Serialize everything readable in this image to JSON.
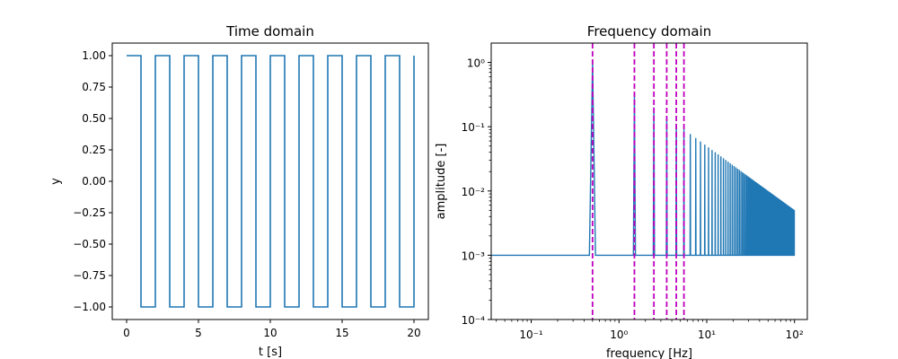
{
  "chart_data": [
    {
      "type": "line",
      "title": "Time domain",
      "xlabel": "t [s]",
      "ylabel": "y",
      "xlim": [
        -1,
        21
      ],
      "ylim": [
        -1.1,
        1.1
      ],
      "x_ticks": [
        0,
        5,
        10,
        15,
        20
      ],
      "x_tick_labels": [
        "0",
        "5",
        "10",
        "15",
        "20"
      ],
      "y_ticks": [
        1.0,
        0.75,
        0.5,
        0.25,
        0.0,
        -0.25,
        -0.5,
        -0.75,
        -1.0
      ],
      "y_tick_labels": [
        "1.00",
        "0.75",
        "0.50",
        "0.25",
        "0.00",
        "−0.25",
        "−0.50",
        "−0.75",
        "−1.00"
      ],
      "series": [
        {
          "color": "#1f77b4",
          "waveform": "square",
          "period": 2,
          "t_start": 0,
          "t_end": 20,
          "high": 1.0,
          "low": -1.0
        }
      ]
    },
    {
      "type": "line",
      "title": "Frequency domain",
      "xlabel": "frequency [Hz]",
      "ylabel": "amplitude [-]",
      "xscale": "log",
      "yscale": "log",
      "xlim": [
        0.035,
        140
      ],
      "ylim": [
        0.0001,
        2
      ],
      "x_ticks": [
        0.1,
        1,
        10,
        100
      ],
      "x_tick_labels": [
        "10⁻¹",
        "10⁰",
        "10¹",
        "10²"
      ],
      "y_ticks": [
        1,
        0.1,
        0.01,
        0.001,
        0.0001
      ],
      "y_tick_labels": [
        "10⁰",
        "10⁻¹",
        "10⁻²",
        "10⁻³",
        "10⁻⁴"
      ],
      "series": [
        {
          "color": "#1f77b4",
          "baseline": 0.001,
          "f_start": 0.035,
          "f_end": 100,
          "peaks_fundamental_hz": 0.5,
          "peaks_odd_harmonics_amplitude_rule": "1/n"
        }
      ],
      "vlines_hz": [
        0.5,
        1.5,
        2.5,
        3.5,
        4.5,
        5.5
      ],
      "vline_color": "#bf00bf",
      "vline_style": "dashed"
    }
  ]
}
